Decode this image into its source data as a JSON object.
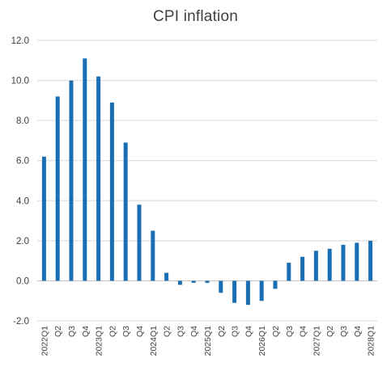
{
  "chart_data": {
    "type": "bar",
    "title": "CPI inflation",
    "xlabel": "",
    "ylabel": "",
    "ylim": [
      -2.0,
      12.0
    ],
    "yticks": [
      "-2.0",
      "0.0",
      "2.0",
      "4.0",
      "6.0",
      "8.0",
      "10.0",
      "12.0"
    ],
    "grid": true,
    "legend": "none",
    "bar_color": "#1a6fb4",
    "categories": [
      "2022Q1",
      "Q2",
      "Q3",
      "Q4",
      "2023Q1",
      "Q2",
      "Q3",
      "Q4",
      "2024Q1",
      "Q2",
      "Q3",
      "Q4",
      "2025Q1",
      "Q2",
      "Q3",
      "Q4",
      "2026Q1",
      "Q2",
      "Q3",
      "Q4",
      "2027Q1",
      "Q2",
      "Q3",
      "Q4",
      "2028Q1"
    ],
    "values": [
      6.2,
      9.2,
      10.0,
      11.1,
      10.2,
      8.9,
      6.9,
      3.8,
      2.5,
      0.4,
      -0.2,
      -0.1,
      -0.1,
      -0.6,
      -1.1,
      -1.2,
      -1.0,
      -0.4,
      0.9,
      1.2,
      1.5,
      1.6,
      1.8,
      1.9,
      2.0
    ]
  }
}
